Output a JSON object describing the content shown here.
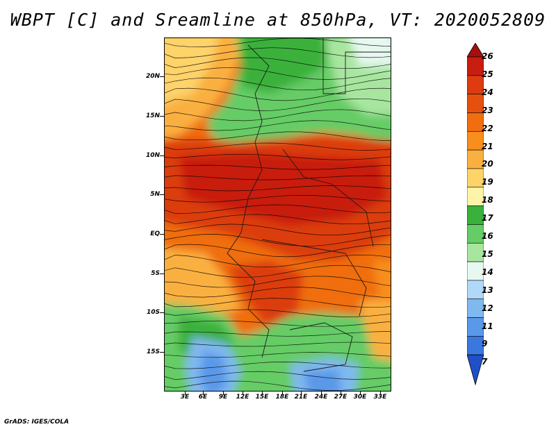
{
  "title": "WBPT [C] and Sreamline at 850hPa, VT: 2020052809",
  "credit": "GrADS: IGES/COLA",
  "lat_labels": [
    "20N",
    "15N",
    "10N",
    "5N",
    "EQ",
    "5S",
    "10S",
    "15S"
  ],
  "lon_labels": [
    "3E",
    "6E",
    "9E",
    "12E",
    "15E",
    "18E",
    "21E",
    "24E",
    "27E",
    "30E",
    "33E"
  ],
  "colorbar": {
    "labels": [
      "26",
      "25",
      "24",
      "23",
      "22",
      "21",
      "20",
      "19",
      "18",
      "17",
      "16",
      "15",
      "14",
      "13",
      "12",
      "11",
      "9",
      "7"
    ],
    "colors": [
      "#a50f0f",
      "#c81e0f",
      "#dc3c0f",
      "#e6500f",
      "#f06e0f",
      "#f88e1c",
      "#fab040",
      "#fdd36a",
      "#fef4a8",
      "#3ab13a",
      "#66cc66",
      "#a8e6a0",
      "#e6f8f0",
      "#b0d8f8",
      "#80b8f0",
      "#5a98e8",
      "#3a78e0",
      "#2050c8"
    ]
  },
  "map": {
    "region": "Central Africa",
    "field": "WBPT",
    "level": "850hPa",
    "valid_time": "2020052809"
  }
}
